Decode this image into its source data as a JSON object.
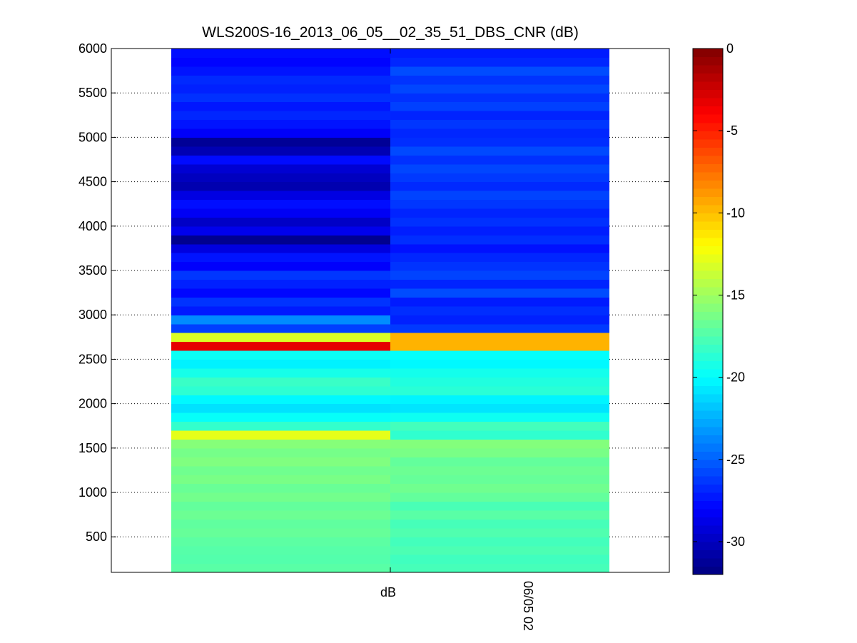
{
  "chart_data": {
    "type": "heatmap",
    "title": "WLS200S-16_2013_06_05__02_35_51_DBS_CNR (dB)",
    "xlabel": "",
    "ylabel": "",
    "x_tick_labels": [
      "dB",
      "06/05 02"
    ],
    "ylim": [
      100,
      6000
    ],
    "y_ticks": [
      500,
      1000,
      1500,
      2000,
      2500,
      3000,
      3500,
      4000,
      4500,
      5000,
      5500,
      6000
    ],
    "y_grid": true,
    "colormap": "jet",
    "colorbar": {
      "range": [
        -32,
        0
      ],
      "ticks": [
        0,
        -5,
        -10,
        -15,
        -20,
        -25,
        -30
      ],
      "placement": "right"
    },
    "gate_spacing": 100,
    "gate_centers_start": 150,
    "columns": [
      "left",
      "right"
    ],
    "values": {
      "left": [
        -17.2,
        -17.4,
        -17.3,
        -17.1,
        -16.8,
        -17.0,
        -16.6,
        -16.9,
        -16.4,
        -16.7,
        -16.2,
        -16.5,
        -16.0,
        -16.3,
        -15.8,
        -12.8,
        -18.4,
        -19.8,
        -20.9,
        -20.2,
        -18.6,
        -18.2,
        -19.3,
        -20.4,
        -19.7,
        -3.2,
        -13.2,
        -26.0,
        -23.6,
        -27.2,
        -26.4,
        -27.8,
        -27.0,
        -26.3,
        -28.1,
        -27.4,
        -29.0,
        -31.5,
        -28.6,
        -29.8,
        -28.3,
        -27.6,
        -28.9,
        -30.5,
        -30.0,
        -29.4,
        -27.7,
        -30.4,
        -31.3,
        -28.2,
        -27.4,
        -26.8,
        -27.3,
        -26.5,
        -27.0,
        -26.7,
        -27.4,
        -27.9,
        -27.6
      ],
      "right": [
        -17.8,
        -18.0,
        -17.6,
        -17.9,
        -17.5,
        -17.8,
        -17.2,
        -17.7,
        -16.9,
        -16.5,
        -16.8,
        -16.6,
        -16.9,
        -16.2,
        -15.9,
        -18.5,
        -17.9,
        -19.6,
        -20.8,
        -20.3,
        -18.7,
        -19.0,
        -19.4,
        -20.2,
        -19.9,
        -9.6,
        -9.6,
        -26.2,
        -27.0,
        -26.6,
        -27.2,
        -25.6,
        -26.9,
        -25.9,
        -26.4,
        -26.8,
        -27.5,
        -26.6,
        -27.1,
        -26.5,
        -26.9,
        -26.3,
        -25.9,
        -26.7,
        -26.2,
        -25.8,
        -26.5,
        -25.7,
        -26.6,
        -26.8,
        -26.3,
        -26.9,
        -26.0,
        -26.5,
        -25.8,
        -26.4,
        -25.6,
        -26.8,
        -27.2
      ]
    }
  }
}
